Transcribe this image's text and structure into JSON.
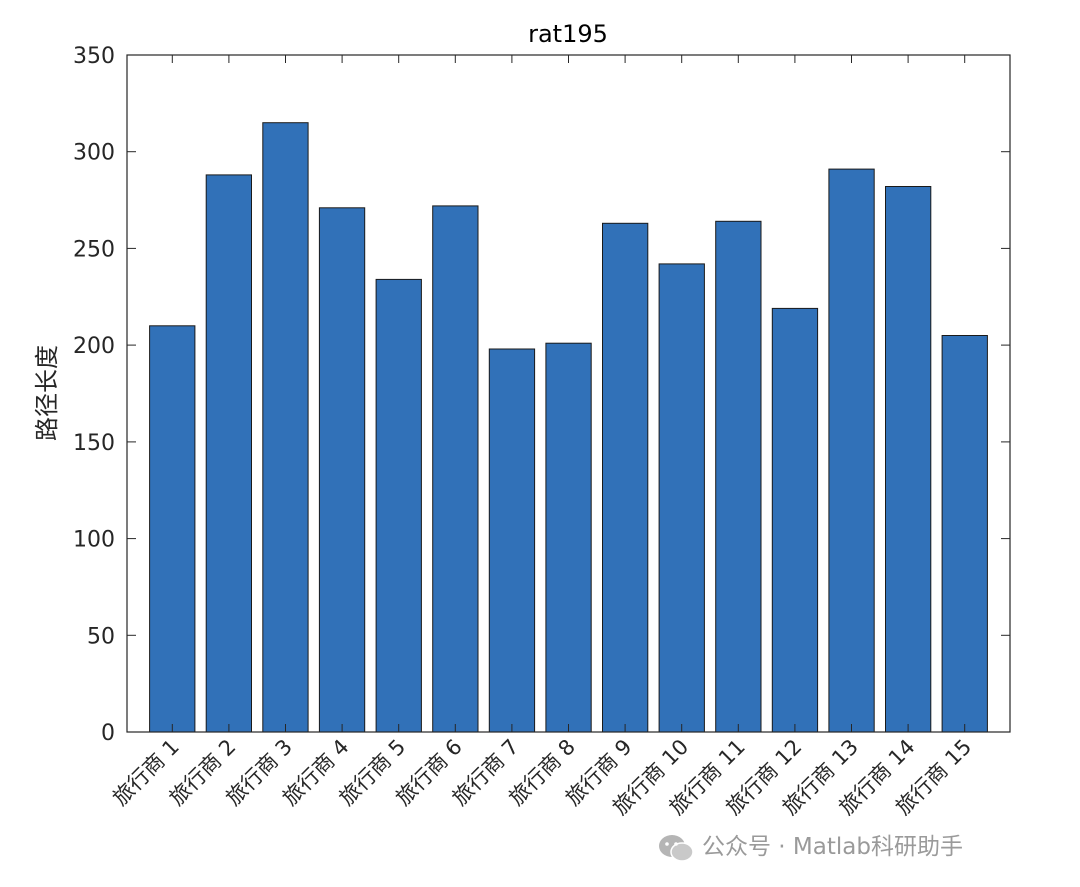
{
  "chart_data": {
    "type": "bar",
    "title": "rat195",
    "xlabel": "",
    "ylabel": "路径长度",
    "categories": [
      "旅行商 1",
      "旅行商 2",
      "旅行商 3",
      "旅行商 4",
      "旅行商 5",
      "旅行商 6",
      "旅行商 7",
      "旅行商 8",
      "旅行商 9",
      "旅行商 10",
      "旅行商 11",
      "旅行商 12",
      "旅行商 13",
      "旅行商 14",
      "旅行商 15"
    ],
    "values": [
      210,
      288,
      315,
      271,
      234,
      272,
      198,
      201,
      263,
      242,
      264,
      219,
      291,
      282,
      205
    ],
    "ylim": [
      0,
      350
    ],
    "yticks": [
      0,
      50,
      100,
      150,
      200,
      250,
      300,
      350
    ],
    "grid": false,
    "bar_color": "#3171B8",
    "bar_edge_color": "#1a1a1a",
    "xtick_rotation": -45
  },
  "watermark": {
    "icon": "wechat-icon",
    "text": "公众号 · Matlab科研助手"
  }
}
